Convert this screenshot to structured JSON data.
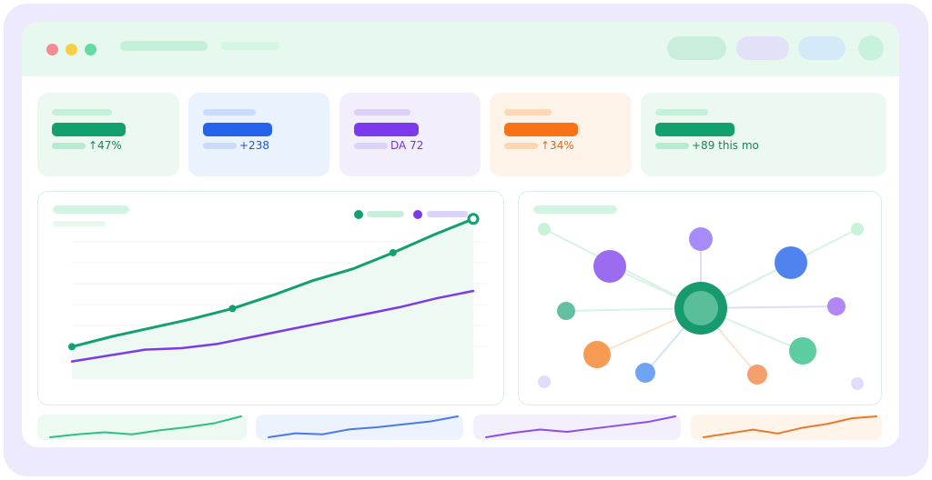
{
  "stat_cards": [
    {
      "delta": "↑47%",
      "accent": "#13a06f",
      "bg": "#ebf9f0"
    },
    {
      "delta": "+238",
      "accent": "#2563eb",
      "bg": "#eaf2fe"
    },
    {
      "delta": "DA 72",
      "accent": "#7c3aed",
      "bg": "#f2eefc"
    },
    {
      "delta": "↑34%",
      "accent": "#f97316",
      "bg": "#fef3e8"
    },
    {
      "delta": "+89 this mo",
      "accent": "#13a06f",
      "bg": "#ebf9f0"
    }
  ],
  "colors": {
    "frame": "#eeeafd",
    "titlebar": "#e7f9ef",
    "green": "#13a06f",
    "purple": "#7c3aed",
    "blue": "#2563eb",
    "orange": "#f97316"
  },
  "icons": [
    "close-dot",
    "minimize-dot",
    "maximize-dot"
  ],
  "chart_data": {
    "type": "line",
    "series": [
      {
        "values": [
          22,
          29,
          35,
          41,
          48,
          57,
          67,
          75,
          86,
          98,
          109
        ]
      },
      {
        "values": [
          12,
          16,
          20,
          21,
          24,
          29,
          34,
          39,
          44,
          49,
          55,
          60
        ]
      }
    ],
    "ylim": [
      0,
      120
    ]
  },
  "network": {
    "hub_color": "#179b6e",
    "nodes": [
      {
        "color": "#9b6cf0"
      },
      {
        "color": "#a78bfa"
      },
      {
        "color": "#4f84ee"
      },
      {
        "color": "#64bfa0"
      },
      {
        "color": "#f59b54"
      },
      {
        "color": "#6fa4f2"
      },
      {
        "color": "#f5a06c"
      },
      {
        "color": "#5ccca1"
      },
      {
        "color": "#b087f3"
      },
      {
        "color": "#c8f3d9"
      },
      {
        "color": "#c8f3d9"
      },
      {
        "color": "#e3dbfb"
      },
      {
        "color": "#e3dbfb"
      }
    ]
  },
  "sparklines": [
    {
      "color": "#2fbf85",
      "values": [
        2,
        5,
        7,
        5,
        9,
        12,
        16,
        23
      ]
    },
    {
      "color": "#4b7ae8",
      "values": [
        2,
        6,
        5,
        10,
        12,
        15,
        18,
        23
      ]
    },
    {
      "color": "#8b4fe8",
      "values": [
        2,
        6,
        9,
        7,
        10,
        13,
        16,
        21
      ]
    },
    {
      "color": "#e8792f",
      "values": [
        2,
        4,
        6,
        4,
        7,
        9,
        12,
        13
      ]
    }
  ]
}
